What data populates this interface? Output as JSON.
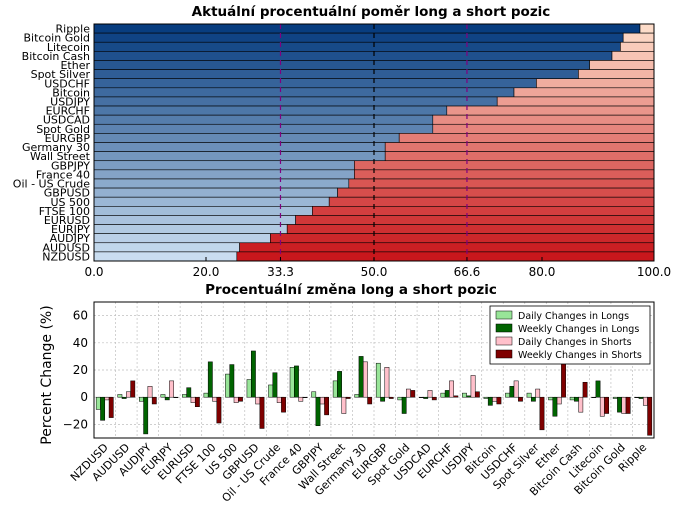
{
  "chart_data": [
    {
      "type": "bar",
      "orientation": "horizontal-stacked",
      "title": "Aktuální procentuální poměr long a short pozic",
      "categories": [
        "Ripple",
        "Bitcoin Gold",
        "Litecoin",
        "Bitcoin Cash",
        "Ether",
        "Spot Silver",
        "USDCHF",
        "Bitcoin",
        "USDJPY",
        "EURCHF",
        "USDCAD",
        "Spot Gold",
        "EURGBP",
        "Germany 30",
        "Wall Street",
        "GBPJPY",
        "France 40",
        "Oil - US Crude",
        "GBPUSD",
        "US 500",
        "FTSE 100",
        "EURUSD",
        "EURJPY",
        "AUDJPY",
        "AUDUSD",
        "NZDUSD"
      ],
      "long_values": [
        97.5,
        94.5,
        94.0,
        92.5,
        88.5,
        86.5,
        79.0,
        75.0,
        72.0,
        63.0,
        60.5,
        60.5,
        54.5,
        52.0,
        52.0,
        46.5,
        46.5,
        45.5,
        43.5,
        42.0,
        39.0,
        36.0,
        34.5,
        31.5,
        26.0,
        25.5
      ],
      "x_ticks": [
        "0.0",
        "20.0",
        "33.3",
        "50.0",
        "66.6",
        "80.0",
        "100.0"
      ],
      "xlim": [
        0,
        100
      ],
      "reference_lines": [
        33.3,
        50.0,
        66.6
      ],
      "colors": {
        "long_dark": "#083d7f",
        "long_light": "#c9ddf0",
        "short_light": "#fddcc9",
        "short_dark": "#c8171c",
        "ref_purple": "#800080",
        "ref_black": "#000000"
      }
    },
    {
      "type": "bar",
      "title": "Procentuální změna long a short pozic",
      "ylabel": "Percent Change (%)",
      "ylim": [
        -30,
        70
      ],
      "y_ticks": [
        "60",
        "40",
        "20",
        "0",
        "−20"
      ],
      "categories": [
        "NZDUSD",
        "AUDUSD",
        "AUDJPY",
        "EURJPY",
        "EURUSD",
        "FTSE 100",
        "US 500",
        "GBPUSD",
        "Oil - US Crude",
        "France 40",
        "GBPJPY",
        "Wall Street",
        "Germany 30",
        "EURGBP",
        "Spot Gold",
        "USDCAD",
        "EURCHF",
        "USDJPY",
        "Bitcoin",
        "USDCHF",
        "Spot Silver",
        "Ether",
        "Bitcoin Cash",
        "Litecoin",
        "Bitcoin Gold",
        "Ripple"
      ],
      "series": [
        {
          "name": "Daily Changes in Longs",
          "color": "#98e598",
          "values": [
            -9,
            2,
            -3,
            2,
            2,
            3,
            17,
            13,
            9,
            22,
            4,
            12,
            2,
            25,
            -2,
            0,
            3,
            3,
            -1,
            3,
            3,
            -2,
            -2,
            0,
            -1,
            0
          ]
        },
        {
          "name": "Weekly Changes in Longs",
          "color": "#006400",
          "values": [
            -17,
            -1,
            -27,
            -2,
            7,
            26,
            24,
            34,
            18,
            23,
            -21,
            19,
            30,
            -3,
            -12,
            -1,
            5,
            1,
            -6,
            8,
            -3,
            -14,
            -3,
            12,
            -11,
            -1
          ]
        },
        {
          "name": "Daily Changes in Shorts",
          "color": "#ffc0cb",
          "values": [
            -2,
            4,
            8,
            12,
            -4,
            -3,
            -4,
            -5,
            -4,
            -3,
            -5,
            -12,
            26,
            22,
            6,
            5,
            12,
            16,
            -3,
            12,
            6,
            -5,
            -11,
            -14,
            -12,
            -6
          ]
        },
        {
          "name": "Weekly Changes in Shorts",
          "color": "#7f0000",
          "values": [
            -15,
            12,
            -5,
            0,
            -7,
            -19,
            -3,
            -23,
            -11,
            0,
            -13,
            -1,
            -5,
            -1,
            5,
            -2,
            1,
            4,
            -5,
            -3,
            -24,
            28,
            11,
            -12,
            -12,
            -28
          ]
        }
      ],
      "legend": {
        "placement": "top-right"
      },
      "grid": true
    }
  ]
}
